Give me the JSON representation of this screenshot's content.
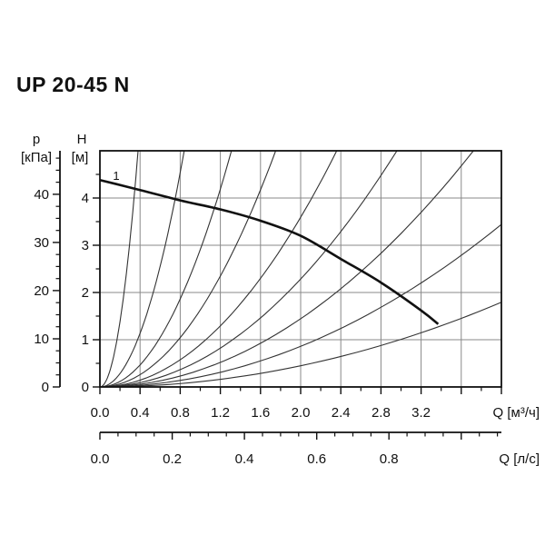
{
  "page": {
    "title": "UP 20-45 N"
  },
  "chart_data": {
    "type": "line",
    "title": "UP 20-45 N",
    "pump_curve": {
      "label": "1",
      "points": [
        [
          0.0,
          4.38
        ],
        [
          0.4,
          4.17
        ],
        [
          0.8,
          3.95
        ],
        [
          1.2,
          3.76
        ],
        [
          1.6,
          3.52
        ],
        [
          2.0,
          3.2
        ],
        [
          2.4,
          2.71
        ],
        [
          2.8,
          2.21
        ],
        [
          3.2,
          1.62
        ],
        [
          3.37,
          1.33
        ]
      ]
    },
    "system_curves": {
      "description": "thin parabolic duty curves H = k*Q^2 fanning from origin",
      "k_values": [
        34.6,
        7.09,
        2.91,
        1.63,
        0.898,
        0.571,
        0.361,
        0.215,
        0.112
      ]
    },
    "axes": {
      "x_m3h": {
        "unit_label": "Q [м³/ч]",
        "min": 0,
        "max": 4.0,
        "major_step": 0.4,
        "minor_step": 0.2,
        "tick_labels": [
          "0.0",
          "0.4",
          "0.8",
          "1.2",
          "1.6",
          "2.0",
          "2.4",
          "2.8",
          "3.2"
        ]
      },
      "x_ls": {
        "unit_label": "Q [л/с]",
        "min": 0,
        "max": 1.11,
        "major_step": 0.2,
        "minor_step": 0.05,
        "m3h_per_ls": 3.6,
        "tick_labels": [
          "0.0",
          "0.2",
          "0.4",
          "0.6",
          "0.8"
        ]
      },
      "y_h": {
        "name_label": "H",
        "unit_label": "[м]",
        "min": 0,
        "max": 5,
        "major_step": 1,
        "minor_step": 0.5,
        "tick_labels": [
          "0",
          "1",
          "2",
          "3",
          "4"
        ]
      },
      "y_p": {
        "name_label": "p",
        "unit_label": "[кПа]",
        "min": 0,
        "max": 48.8,
        "major_step": 10,
        "minor_step": 2.5,
        "kpa_per_m": 9.80665,
        "tick_labels": [
          "0",
          "10",
          "20",
          "30",
          "40"
        ]
      }
    },
    "grid": {
      "on": true,
      "x_step": 0.4,
      "y_step": 1
    },
    "colors": {
      "pump_curve": "#111111",
      "system_curve": "#333333",
      "grid": "#888888",
      "frame": "#111111",
      "text": "#111111"
    }
  }
}
